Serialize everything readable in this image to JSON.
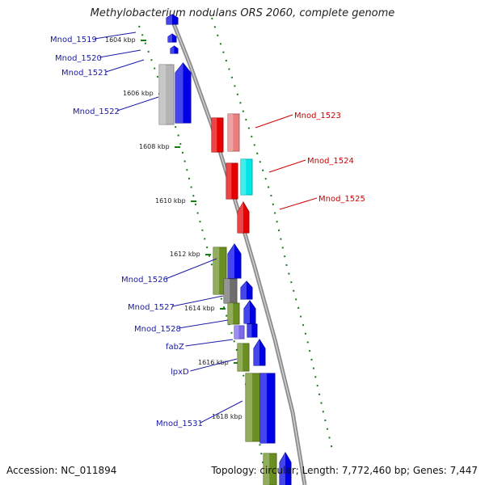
{
  "title": "Methylobacterium nodulans ORS 2060, complete genome",
  "footer": {
    "accession": "Accession: NC_011894",
    "topology": "Topology: circular; Length: 7,772,460 bp; Genes: 7,447"
  },
  "colors": {
    "backbone": "#8c8c8c",
    "tick": "#1a7a1a",
    "label_left": "#1a1aa6",
    "label_right": "#cc0000",
    "blue": "#0000e6",
    "red": "#e60000",
    "pink": "#e88080",
    "cyan": "#00e6e6",
    "olive": "#6b8e23",
    "grey": "#b4b4b4",
    "darkgrey": "#6e6e6e",
    "purple": "#7b68ee"
  },
  "ticks": [
    "1604 kbp",
    "1606 kbp",
    "1608 kbp",
    "1610 kbp",
    "1612 kbp",
    "1614 kbp",
    "1616 kbp",
    "1618 kbp"
  ],
  "left_labels": [
    "Mnod_1519",
    "Mnod_1520",
    "Mnod_1521",
    "Mnod_1522",
    "Mnod_1526",
    "Mnod_1527",
    "Mnod_1528",
    "fabZ",
    "lpxD",
    "Mnod_1531"
  ],
  "right_labels": [
    "Mnod_1523",
    "Mnod_1524",
    "Mnod_1525"
  ]
}
